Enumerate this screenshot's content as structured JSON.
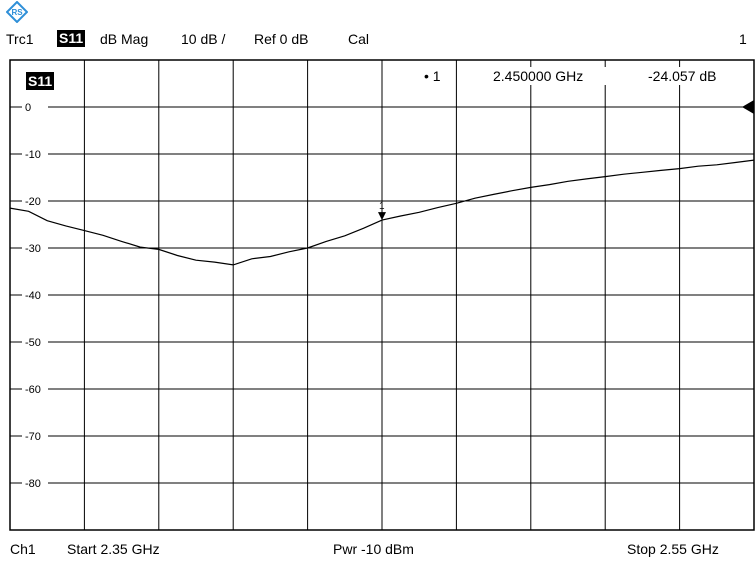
{
  "header": {
    "trace": "Trc1",
    "param": "S11",
    "format": "dB Mag",
    "scale": "10 dB /",
    "ref": "Ref 0 dB",
    "cal": "Cal",
    "channel_num": "1"
  },
  "footer": {
    "channel": "Ch1",
    "start": "Start  2.35 GHz",
    "power": "Pwr  -10 dBm",
    "stop": "Stop  2.55 GHz"
  },
  "marker_readout": {
    "label": "• 1",
    "freq": "2.450000  GHz",
    "value": "-24.057  dB"
  },
  "icons": {
    "logo": "rohde-schwarz-logo-icon",
    "ref": "reference-arrow-icon",
    "marker": "marker-triangle-icon"
  },
  "colors": {
    "trace": "#000000",
    "grid": "#000000",
    "logo": "#2e8fd8"
  },
  "chart_data": {
    "type": "line",
    "title": "S11",
    "xlabel": "",
    "ylabel": "",
    "xlim": [
      2.35,
      2.55
    ],
    "ylim": [
      -90,
      10
    ],
    "y_ticks": [
      0,
      -10,
      -20,
      -30,
      -40,
      -50,
      -60,
      -70,
      -80
    ],
    "y_tick_labels": [
      "0",
      "-10",
      "-20",
      "-30",
      "-40",
      "-50",
      "-60",
      "-70",
      "-80"
    ],
    "grid": true,
    "legend": "none",
    "series": [
      {
        "x": [
          2.35,
          2.355,
          2.36,
          2.365,
          2.37,
          2.375,
          2.38,
          2.385,
          2.39,
          2.395,
          2.4,
          2.405,
          2.41,
          2.415,
          2.42,
          2.425,
          2.43,
          2.435,
          2.44,
          2.445,
          2.45,
          2.455,
          2.46,
          2.465,
          2.47,
          2.475,
          2.48,
          2.485,
          2.49,
          2.495,
          2.5,
          2.505,
          2.51,
          2.515,
          2.52,
          2.525,
          2.53,
          2.535,
          2.54,
          2.545,
          2.55
        ],
        "y": [
          -21.5,
          -22.2,
          -24.2,
          -25.3,
          -26.3,
          -27.3,
          -28.6,
          -29.8,
          -30.3,
          -31.6,
          -32.6,
          -33.0,
          -33.6,
          -32.3,
          -31.8,
          -30.8,
          -30.0,
          -28.6,
          -27.4,
          -25.8,
          -24.06,
          -23.2,
          -22.4,
          -21.4,
          -20.5,
          -19.4,
          -18.6,
          -17.8,
          -17.1,
          -16.5,
          -15.8,
          -15.3,
          -14.8,
          -14.3,
          -13.9,
          -13.5,
          -13.1,
          -12.6,
          -12.3,
          -11.8,
          -11.3
        ]
      }
    ],
    "markers": [
      {
        "label": "1",
        "x": 2.45,
        "y": -24.057
      }
    ]
  }
}
